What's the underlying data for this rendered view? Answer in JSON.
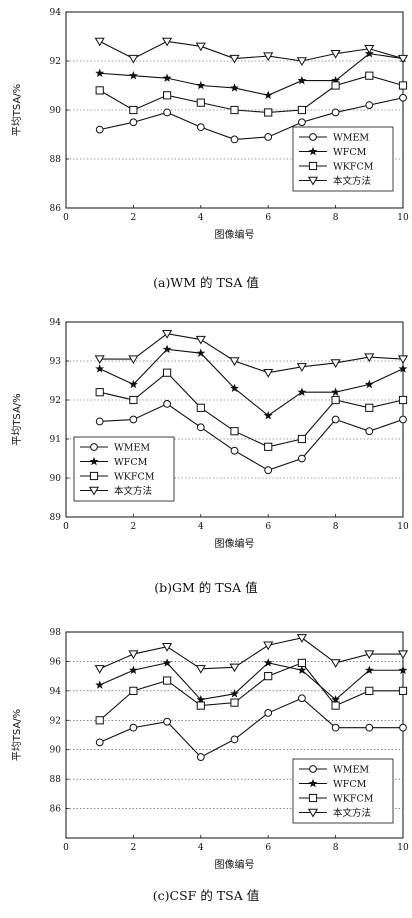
{
  "chart_data": [
    {
      "type": "line",
      "caption": "(a)WM 的 TSA 值",
      "xlabel": "图像编号",
      "ylabel": "平均TSA/%",
      "x": [
        1,
        2,
        3,
        4,
        5,
        6,
        7,
        8,
        9,
        10
      ],
      "xlim": [
        0,
        10
      ],
      "ylim": [
        86,
        94
      ],
      "xticks": [
        0,
        2,
        4,
        6,
        8,
        10
      ],
      "yticks": [
        86,
        88,
        90,
        92,
        94
      ],
      "grid": true,
      "legend_position": "bottom-right",
      "series": [
        {
          "name": "WMEM",
          "marker": "circle",
          "values": [
            89.2,
            89.5,
            89.9,
            89.3,
            88.8,
            88.9,
            89.5,
            89.9,
            90.2,
            90.5
          ]
        },
        {
          "name": "WFCM",
          "marker": "star",
          "values": [
            91.5,
            91.4,
            91.3,
            91.0,
            90.9,
            90.6,
            91.2,
            91.2,
            92.3,
            92.1
          ]
        },
        {
          "name": "WKFCM",
          "marker": "square",
          "values": [
            90.8,
            90.0,
            90.6,
            90.3,
            90.0,
            89.9,
            90.0,
            91.0,
            91.4,
            91.0
          ]
        },
        {
          "name": "本文方法",
          "marker": "triangle-down",
          "values": [
            92.8,
            92.1,
            92.8,
            92.6,
            92.1,
            92.2,
            92.0,
            92.3,
            92.5,
            92.1
          ]
        }
      ]
    },
    {
      "type": "line",
      "caption": "(b)GM 的 TSA 值",
      "xlabel": "图像编号",
      "ylabel": "平均TSA/%",
      "x": [
        1,
        2,
        3,
        4,
        5,
        6,
        7,
        8,
        9,
        10
      ],
      "xlim": [
        0,
        10
      ],
      "ylim": [
        89,
        94
      ],
      "xticks": [
        0,
        2,
        4,
        6,
        8,
        10
      ],
      "yticks": [
        89,
        90,
        91,
        92,
        93,
        94
      ],
      "grid": true,
      "legend_position": "bottom-left",
      "series": [
        {
          "name": "WMEM",
          "marker": "circle",
          "values": [
            91.45,
            91.5,
            91.9,
            91.3,
            90.7,
            90.2,
            90.5,
            91.5,
            91.2,
            91.5
          ]
        },
        {
          "name": "WFCM",
          "marker": "star",
          "values": [
            92.8,
            92.4,
            93.3,
            93.2,
            92.3,
            91.6,
            92.2,
            92.2,
            92.4,
            92.8
          ]
        },
        {
          "name": "WKFCM",
          "marker": "square",
          "values": [
            92.2,
            92.0,
            92.7,
            91.8,
            91.2,
            90.8,
            91.0,
            92.0,
            91.8,
            92.0
          ]
        },
        {
          "name": "本文方法",
          "marker": "triangle-down",
          "values": [
            93.05,
            93.05,
            93.7,
            93.55,
            93.0,
            92.7,
            92.85,
            92.95,
            93.1,
            93.05
          ]
        }
      ]
    },
    {
      "type": "line",
      "caption": "(c)CSF 的 TSA 值",
      "xlabel": "图像编号",
      "ylabel": "平均TSA/%",
      "x": [
        1,
        2,
        3,
        4,
        5,
        6,
        7,
        8,
        9,
        10
      ],
      "xlim": [
        0,
        10
      ],
      "ylim": [
        84,
        98
      ],
      "xticks": [
        0,
        2,
        4,
        6,
        8,
        10
      ],
      "yticks": [
        86,
        88,
        90,
        92,
        94,
        96,
        98
      ],
      "grid": true,
      "legend_position": "bottom-right",
      "series": [
        {
          "name": "WMEM",
          "marker": "circle",
          "values": [
            90.5,
            91.5,
            91.9,
            89.5,
            90.7,
            92.5,
            93.5,
            91.5,
            91.5,
            91.5
          ]
        },
        {
          "name": "WFCM",
          "marker": "star",
          "values": [
            94.4,
            95.4,
            95.9,
            93.4,
            93.8,
            95.9,
            95.4,
            93.4,
            95.4,
            95.4
          ]
        },
        {
          "name": "WKFCM",
          "marker": "square",
          "values": [
            92.0,
            94.0,
            94.7,
            93.0,
            93.2,
            95.0,
            95.9,
            93.0,
            94.0,
            94.0
          ]
        },
        {
          "name": "本文方法",
          "marker": "triangle-down",
          "values": [
            95.5,
            96.5,
            97.0,
            95.5,
            95.6,
            97.1,
            97.6,
            95.9,
            96.5,
            96.5
          ]
        }
      ]
    }
  ]
}
